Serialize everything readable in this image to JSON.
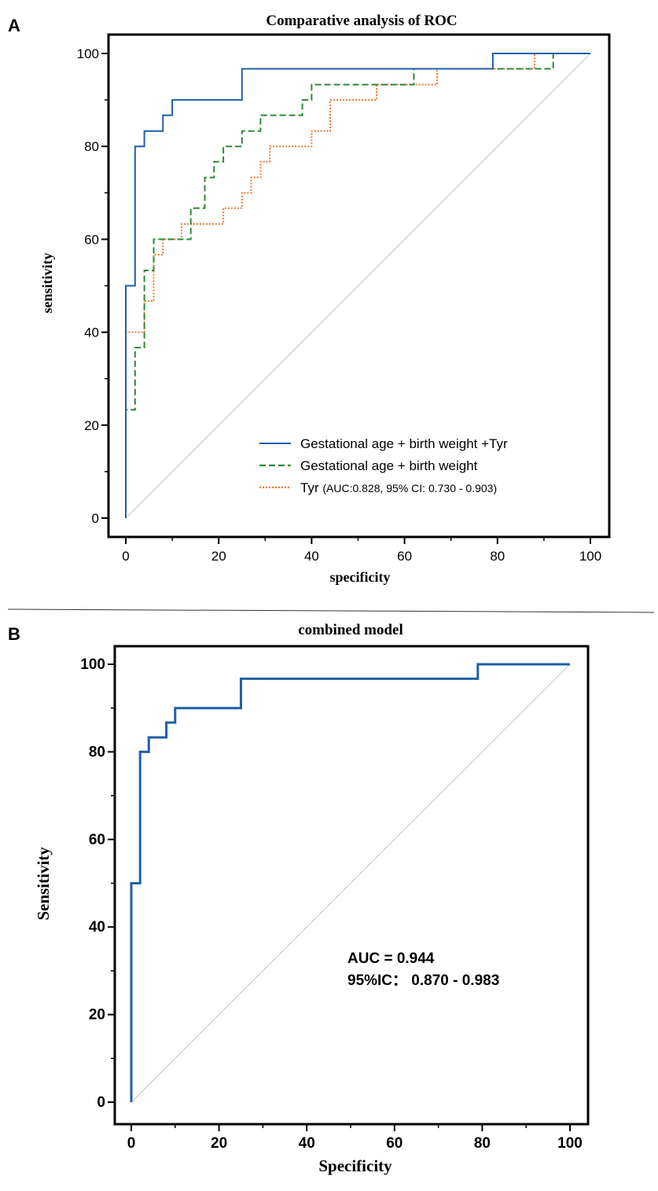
{
  "chart_data": [
    {
      "panel": "A",
      "type": "line",
      "title": "Comparative analysis of ROC",
      "xlabel": "specificity",
      "ylabel": "sensitivity",
      "xlim": [
        0,
        100
      ],
      "ylim": [
        0,
        100
      ],
      "xticks": [
        0,
        20,
        40,
        60,
        80,
        100
      ],
      "yticks": [
        0,
        20,
        40,
        60,
        80,
        100
      ],
      "legend_position": "lower-right",
      "reference_line": true,
      "series": [
        {
          "name": "Gestational age + birth weight +Tyr",
          "color": "#1f5fa6",
          "style": "solid",
          "points": [
            [
              0,
              0
            ],
            [
              0,
              50
            ],
            [
              2,
              50
            ],
            [
              2,
              80
            ],
            [
              4,
              80
            ],
            [
              4,
              83.3
            ],
            [
              8,
              83.3
            ],
            [
              8,
              86.7
            ],
            [
              10,
              86.7
            ],
            [
              10,
              90
            ],
            [
              25,
              90
            ],
            [
              25,
              96.7
            ],
            [
              79,
              96.7
            ],
            [
              79,
              100
            ],
            [
              100,
              100
            ]
          ]
        },
        {
          "name": "Gestational age + birth weight",
          "color": "#2a8a3a",
          "style": "dashed",
          "points": [
            [
              0,
              0
            ],
            [
              0,
              23.3
            ],
            [
              2,
              23.3
            ],
            [
              2,
              36.7
            ],
            [
              4,
              36.7
            ],
            [
              4,
              53.3
            ],
            [
              6,
              53.3
            ],
            [
              6,
              60
            ],
            [
              14,
              60
            ],
            [
              14,
              66.7
            ],
            [
              17,
              66.7
            ],
            [
              17,
              73.3
            ],
            [
              19,
              73.3
            ],
            [
              19,
              76.7
            ],
            [
              21,
              76.7
            ],
            [
              21,
              80
            ],
            [
              25,
              80
            ],
            [
              25,
              83.3
            ],
            [
              29,
              83.3
            ],
            [
              29,
              86.7
            ],
            [
              38,
              86.7
            ],
            [
              38,
              90
            ],
            [
              40,
              90
            ],
            [
              40,
              93.3
            ],
            [
              62,
              93.3
            ],
            [
              62,
              96.7
            ],
            [
              88,
              96.7
            ],
            [
              88,
              96.7
            ],
            [
              92,
              96.7
            ],
            [
              92,
              100
            ],
            [
              100,
              100
            ]
          ]
        },
        {
          "name": "Tyr",
          "name_detail": "(AUC:0.828, 95% CI: 0.730 - 0.903)",
          "color": "#f07a2c",
          "style": "dotted",
          "points": [
            [
              0,
              0
            ],
            [
              0,
              40
            ],
            [
              4,
              40
            ],
            [
              4,
              46.7
            ],
            [
              6,
              46.7
            ],
            [
              6,
              56.7
            ],
            [
              8,
              56.7
            ],
            [
              8,
              60
            ],
            [
              12,
              60
            ],
            [
              12,
              63.3
            ],
            [
              21,
              63.3
            ],
            [
              21,
              66.7
            ],
            [
              25,
              66.7
            ],
            [
              25,
              70
            ],
            [
              27,
              70
            ],
            [
              27,
              73.3
            ],
            [
              29,
              73.3
            ],
            [
              29,
              76.7
            ],
            [
              31,
              76.7
            ],
            [
              31,
              80
            ],
            [
              40,
              80
            ],
            [
              40,
              83.3
            ],
            [
              44,
              83.3
            ],
            [
              44,
              90
            ],
            [
              54,
              90
            ],
            [
              54,
              93.3
            ],
            [
              67,
              93.3
            ],
            [
              67,
              96.7
            ],
            [
              88,
              96.7
            ],
            [
              88,
              100
            ],
            [
              100,
              100
            ]
          ]
        }
      ]
    },
    {
      "panel": "B",
      "type": "line",
      "title": "combined model",
      "xlabel": "Specificity",
      "ylabel": "Sensitivity",
      "xlim": [
        0,
        100
      ],
      "ylim": [
        0,
        100
      ],
      "xticks": [
        0,
        20,
        40,
        60,
        80,
        100
      ],
      "yticks": [
        0,
        20,
        40,
        60,
        80,
        100
      ],
      "reference_line": true,
      "annotations": [
        "AUC = 0.944",
        "95%IC： 0.870 - 0.983"
      ],
      "series": [
        {
          "name": "combined model",
          "color": "#1f5fa6",
          "style": "solid",
          "points": [
            [
              0,
              0
            ],
            [
              0,
              50
            ],
            [
              2,
              50
            ],
            [
              2,
              80
            ],
            [
              4,
              80
            ],
            [
              4,
              83.3
            ],
            [
              8,
              83.3
            ],
            [
              8,
              86.7
            ],
            [
              10,
              86.7
            ],
            [
              10,
              90
            ],
            [
              25,
              90
            ],
            [
              25,
              96.7
            ],
            [
              79,
              96.7
            ],
            [
              79,
              100
            ],
            [
              100,
              100
            ]
          ]
        }
      ]
    }
  ]
}
